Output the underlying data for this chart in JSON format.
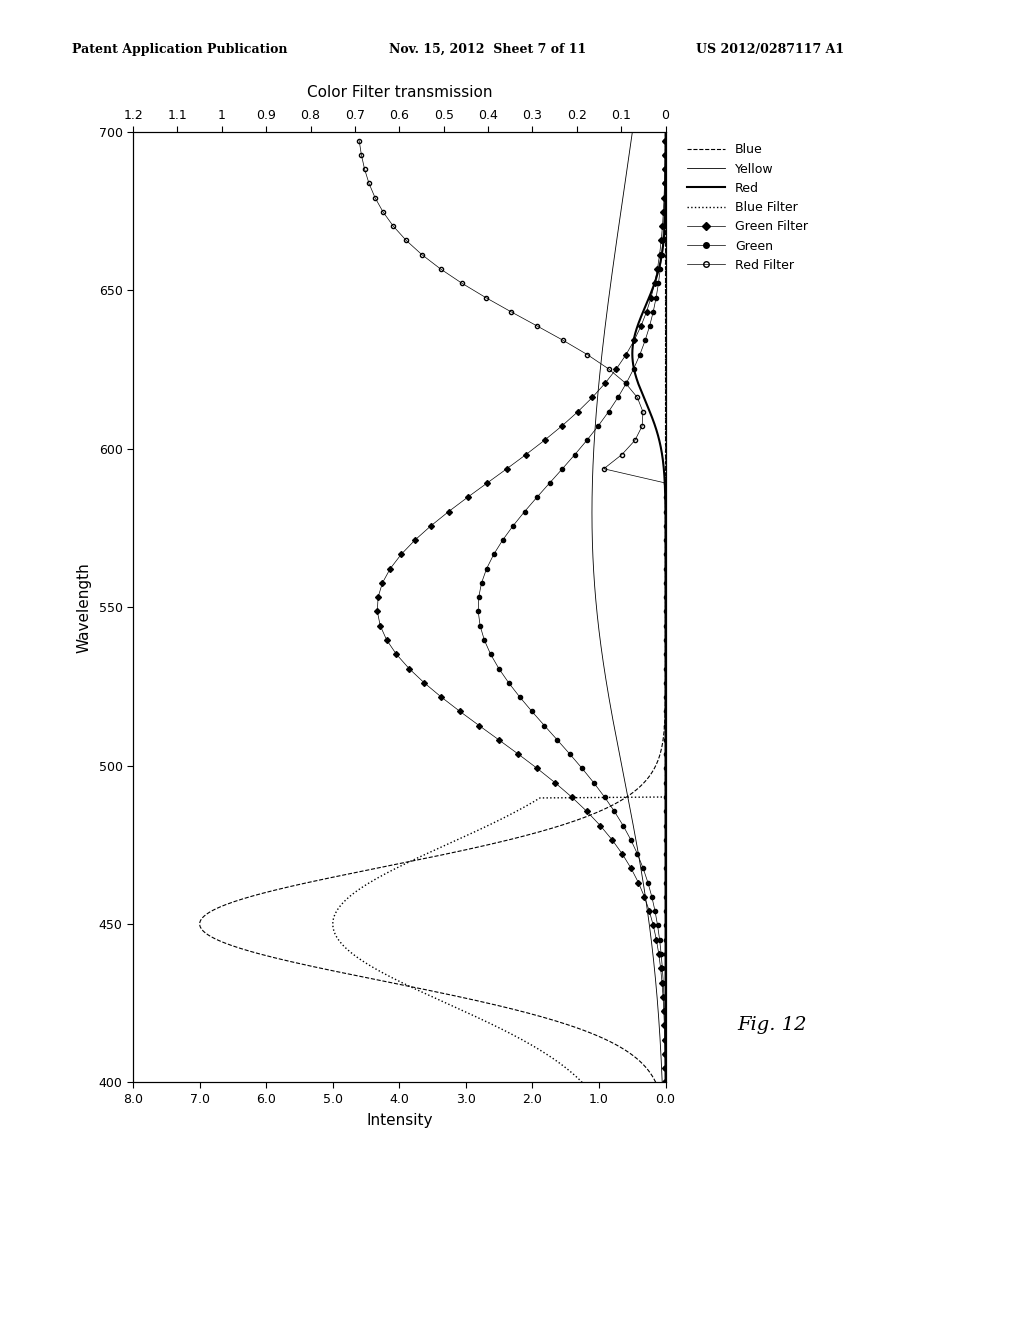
{
  "header_left": "Patent Application Publication",
  "header_center": "Nov. 15, 2012  Sheet 7 of 11",
  "header_right": "US 2012/0287117 A1",
  "title": "Color Filter transmission",
  "xlabel_bottom": "Intensity",
  "xlabel_top": "Color Filter transmission",
  "ylabel": "Wavelength",
  "wavelength_range": [
    400,
    700
  ],
  "intensity_range": [
    0,
    8
  ],
  "filter_range": [
    0,
    1.2
  ],
  "fig_label": "Fig. 12",
  "background_color": "#ffffff"
}
